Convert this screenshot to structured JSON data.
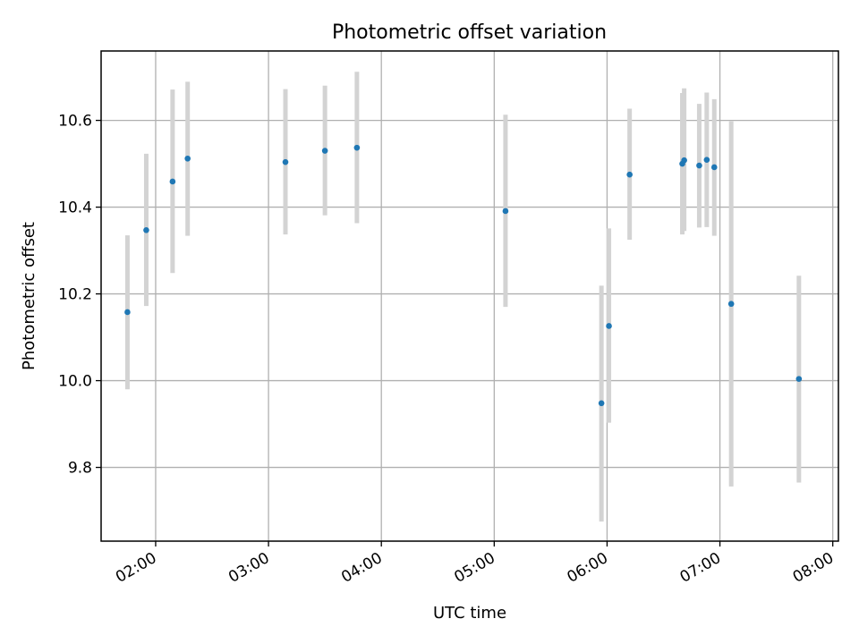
{
  "colors": {
    "point": "#1f77b4",
    "errorbar": "#d3d3d3",
    "grid": "#b0b0b0"
  },
  "chart_data": {
    "type": "scatter",
    "title": "Photometric offset variation",
    "xlabel": "UTC time",
    "ylabel": "Photometric offset",
    "grid": true,
    "xlim": [
      "01:31",
      "08:03"
    ],
    "ylim": [
      9.63,
      10.76
    ],
    "x_ticks": [
      "02:00",
      "03:00",
      "04:00",
      "05:00",
      "06:00",
      "07:00",
      "08:00"
    ],
    "y_ticks": [
      9.8,
      10.0,
      10.2,
      10.4,
      10.6
    ],
    "y_tick_labels": [
      "9.8",
      "10.0",
      "10.2",
      "10.4",
      "10.6"
    ],
    "points": [
      {
        "x": "01:45",
        "y": 10.158,
        "ylow": 9.98,
        "yhigh": 10.335
      },
      {
        "x": "01:55",
        "y": 10.347,
        "ylow": 10.172,
        "yhigh": 10.523
      },
      {
        "x": "02:09",
        "y": 10.459,
        "ylow": 10.248,
        "yhigh": 10.671
      },
      {
        "x": "02:17",
        "y": 10.512,
        "ylow": 10.334,
        "yhigh": 10.689
      },
      {
        "x": "03:09",
        "y": 10.504,
        "ylow": 10.337,
        "yhigh": 10.672
      },
      {
        "x": "03:30",
        "y": 10.53,
        "ylow": 10.381,
        "yhigh": 10.68
      },
      {
        "x": "03:47",
        "y": 10.537,
        "ylow": 10.363,
        "yhigh": 10.712
      },
      {
        "x": "05:06",
        "y": 10.391,
        "ylow": 10.17,
        "yhigh": 10.613
      },
      {
        "x": "05:57",
        "y": 9.948,
        "ylow": 9.675,
        "yhigh": 10.219
      },
      {
        "x": "06:01",
        "y": 10.126,
        "ylow": 9.903,
        "yhigh": 10.351
      },
      {
        "x": "06:12",
        "y": 10.475,
        "ylow": 10.325,
        "yhigh": 10.627
      },
      {
        "x": "06:40",
        "y": 10.5,
        "ylow": 10.337,
        "yhigh": 10.663
      },
      {
        "x": "06:41",
        "y": 10.508,
        "ylow": 10.345,
        "yhigh": 10.674
      },
      {
        "x": "06:49",
        "y": 10.496,
        "ylow": 10.353,
        "yhigh": 10.638
      },
      {
        "x": "06:53",
        "y": 10.509,
        "ylow": 10.354,
        "yhigh": 10.664
      },
      {
        "x": "06:57",
        "y": 10.492,
        "ylow": 10.334,
        "yhigh": 10.649
      },
      {
        "x": "07:06",
        "y": 10.177,
        "ylow": 9.756,
        "yhigh": 10.598
      },
      {
        "x": "07:42",
        "y": 10.004,
        "ylow": 9.765,
        "yhigh": 10.242
      }
    ]
  }
}
